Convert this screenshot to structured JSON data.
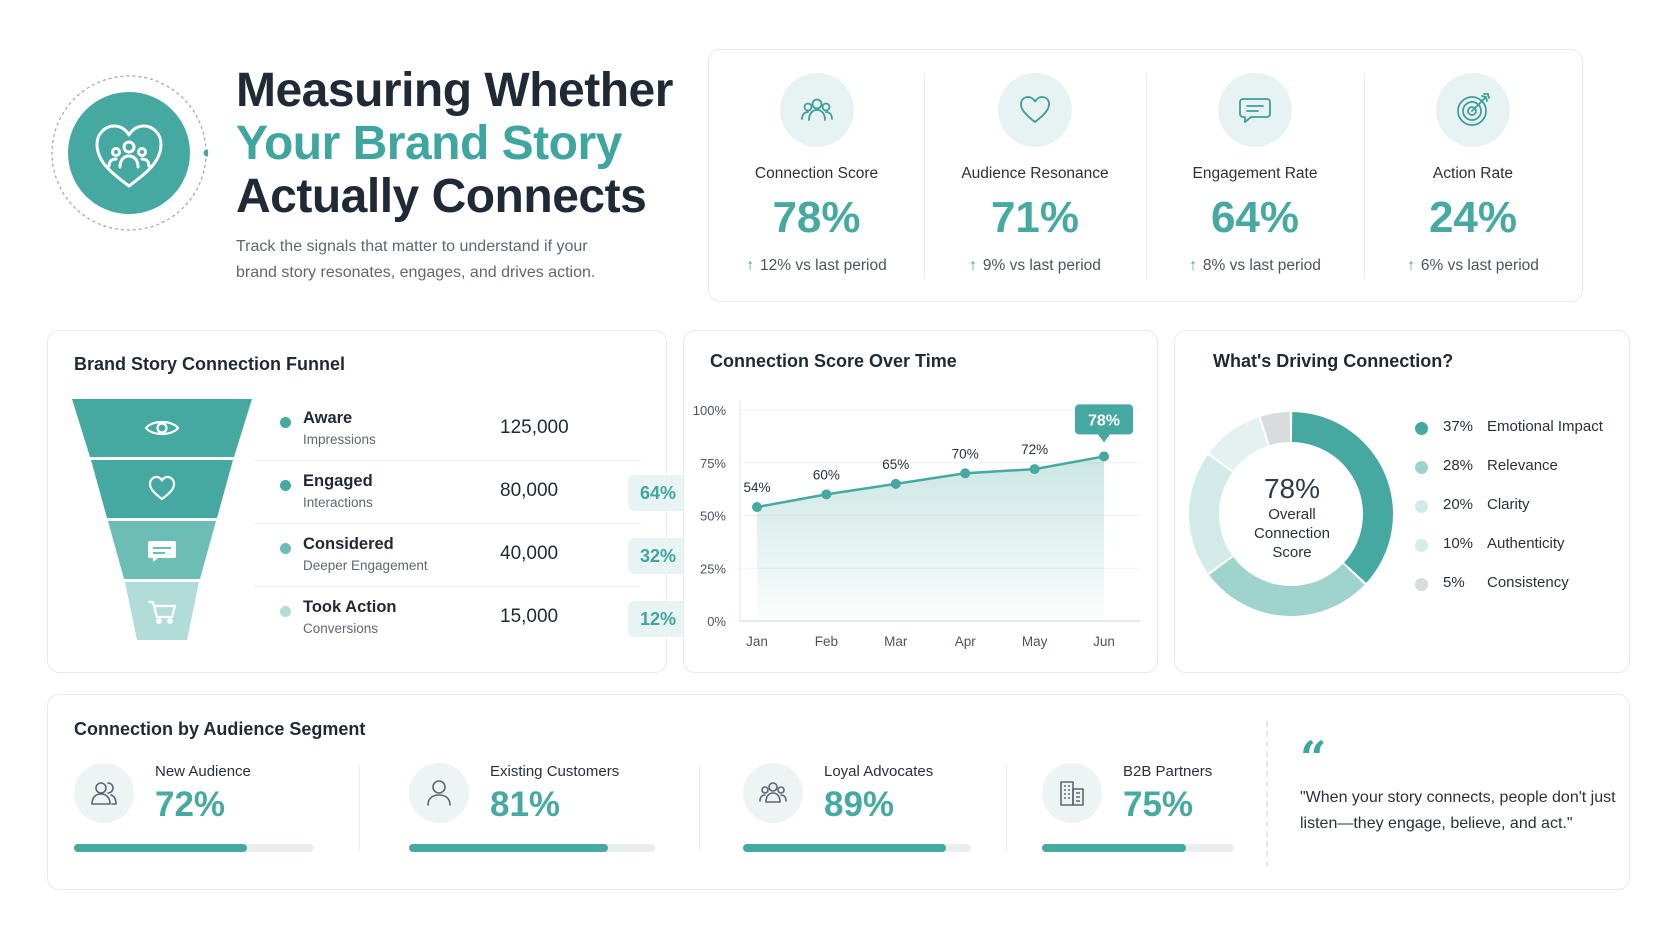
{
  "header": {
    "title_line1": "Measuring Whether",
    "title_line2": "Your Brand Story",
    "title_line3": "Actually Connects",
    "subtitle": "Track the signals that matter to understand if your brand story resonates, engages, and drives action."
  },
  "kpis": [
    {
      "label": "Connection Score",
      "value": "78%",
      "delta": "12% vs last period",
      "icon": "people-group-icon"
    },
    {
      "label": "Audience Resonance",
      "value": "71%",
      "delta": "9% vs last period",
      "icon": "heart-icon"
    },
    {
      "label": "Engagement Rate",
      "value": "64%",
      "delta": "8% vs last period",
      "icon": "chat-bubble-icon"
    },
    {
      "label": "Action Rate",
      "value": "24%",
      "delta": "6% vs last period",
      "icon": "target-icon"
    }
  ],
  "funnel": {
    "title": "Brand Story Connection Funnel",
    "stages": [
      {
        "name": "Aware",
        "sub": "Impressions",
        "count": "125,000",
        "pct": "",
        "icon": "eye-icon",
        "color": "#45a9a1"
      },
      {
        "name": "Engaged",
        "sub": "Interactions",
        "count": "80,000",
        "pct": "64%",
        "icon": "heart-icon",
        "color": "#45a9a1"
      },
      {
        "name": "Considered",
        "sub": "Deeper Engagement",
        "count": "40,000",
        "pct": "32%",
        "icon": "message-icon",
        "color": "#6cbdb6"
      },
      {
        "name": "Took Action",
        "sub": "Conversions",
        "count": "15,000",
        "pct": "12%",
        "icon": "cart-icon",
        "color": "#b2dcd8"
      }
    ]
  },
  "segments": {
    "title": "Connection by Audience Segment",
    "items": [
      {
        "label": "New Audience",
        "value": "72%",
        "fraction": 0.72,
        "icon": "users-icon"
      },
      {
        "label": "Existing Customers",
        "value": "81%",
        "fraction": 0.81,
        "icon": "user-icon"
      },
      {
        "label": "Loyal Advocates",
        "value": "89%",
        "fraction": 0.89,
        "icon": "people-group-icon"
      },
      {
        "label": "B2B Partners",
        "value": "75%",
        "fraction": 0.75,
        "icon": "building-icon"
      }
    ],
    "quote": "\"When your story connects, people don't just listen—they engage, believe, and act.\"",
    "quote_mark": "“"
  },
  "chart_data": [
    {
      "type": "line",
      "title": "Connection Score Over Time",
      "categories": [
        "Jan",
        "Feb",
        "Mar",
        "Apr",
        "May",
        "Jun"
      ],
      "values": [
        54,
        60,
        65,
        70,
        72,
        78
      ],
      "value_labels": [
        "54%",
        "60%",
        "65%",
        "70%",
        "72%",
        "78%"
      ],
      "yticks": [
        "0%",
        "25%",
        "50%",
        "75%",
        "100%"
      ],
      "ylim": [
        0,
        100
      ],
      "color": "#45a9a1",
      "highlight_last": true
    },
    {
      "type": "pie",
      "title": "What's Driving Connection?",
      "center_value": "78%",
      "center_label": "Overall Connection Score",
      "slices": [
        {
          "label": "Emotional Impact",
          "value": 37,
          "pct": "37%",
          "color": "#45a9a1"
        },
        {
          "label": "Relevance",
          "value": 28,
          "pct": "28%",
          "color": "#9ed3ce"
        },
        {
          "label": "Clarity",
          "value": 20,
          "pct": "20%",
          "color": "#d2ebe8"
        },
        {
          "label": "Authenticity",
          "value": 10,
          "pct": "10%",
          "color": "#e5f1f0"
        },
        {
          "label": "Consistency",
          "value": 5,
          "pct": "5%",
          "color": "#d9dcdd"
        }
      ],
      "legend": "right"
    }
  ]
}
